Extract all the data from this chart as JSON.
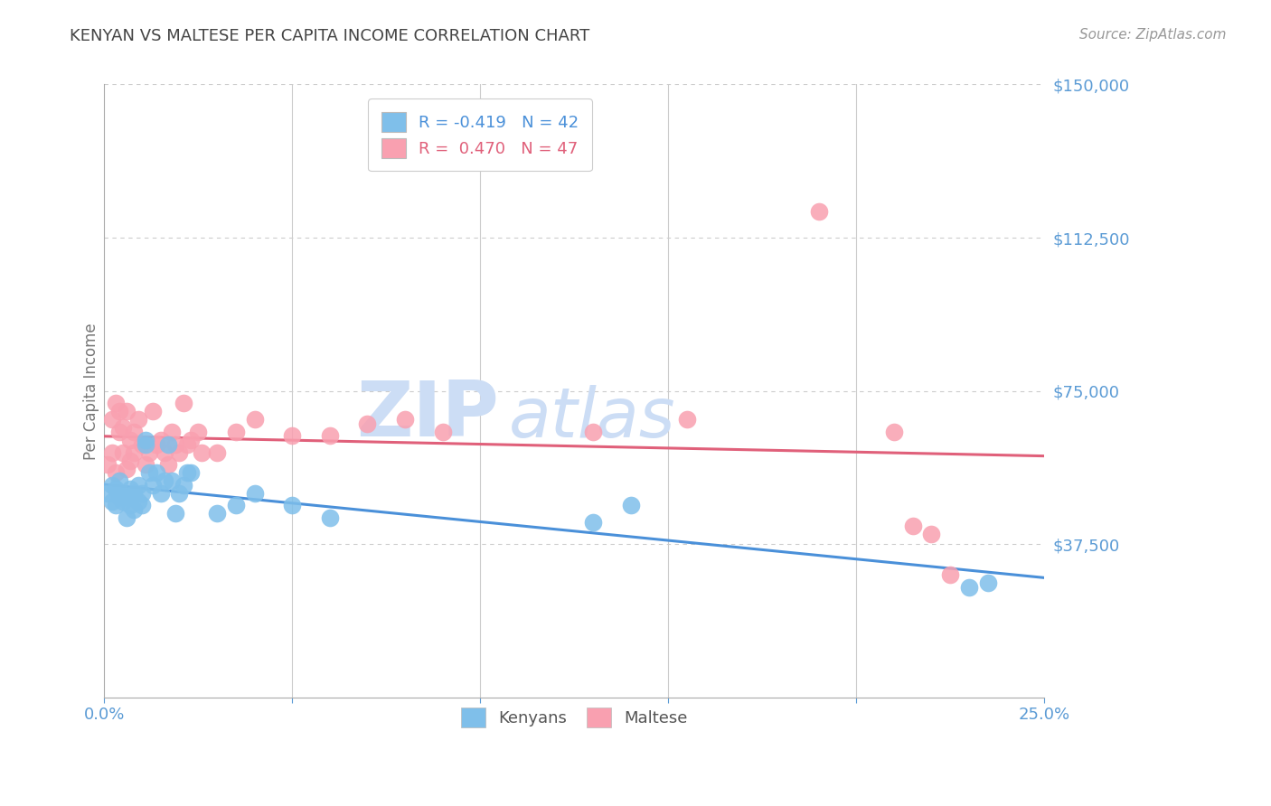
{
  "title": "KENYAN VS MALTESE PER CAPITA INCOME CORRELATION CHART",
  "source": "Source: ZipAtlas.com",
  "ylabel": "Per Capita Income",
  "xlim": [
    0.0,
    0.25
  ],
  "ylim": [
    0,
    150000
  ],
  "xticks": [
    0.0,
    0.05,
    0.1,
    0.15,
    0.2,
    0.25
  ],
  "xticklabels": [
    "0.0%",
    "",
    "",
    "",
    "",
    "25.0%"
  ],
  "yticks": [
    0,
    37500,
    75000,
    112500,
    150000
  ],
  "yticklabels": [
    "",
    "$37,500",
    "$75,000",
    "$112,500",
    "$150,000"
  ],
  "grid_color": "#cccccc",
  "background_color": "#ffffff",
  "kenyan_color": "#7fbfea",
  "maltese_color": "#f9a0b0",
  "kenyan_line_color": "#4a90d9",
  "maltese_line_color": "#e0607a",
  "title_color": "#444444",
  "axis_label_color": "#777777",
  "tick_label_color": "#5b9bd5",
  "source_color": "#999999",
  "legend_kenyan_label": "R = -0.419   N = 42",
  "legend_maltese_label": "R =  0.470   N = 47",
  "watermark_zip": "ZIP",
  "watermark_atlas": "atlas",
  "watermark_color": "#ccddf5",
  "kenyan_x": [
    0.001,
    0.002,
    0.002,
    0.003,
    0.003,
    0.004,
    0.004,
    0.005,
    0.005,
    0.006,
    0.006,
    0.007,
    0.007,
    0.008,
    0.008,
    0.009,
    0.009,
    0.01,
    0.01,
    0.011,
    0.011,
    0.012,
    0.013,
    0.014,
    0.015,
    0.016,
    0.017,
    0.018,
    0.019,
    0.02,
    0.021,
    0.022,
    0.023,
    0.03,
    0.035,
    0.04,
    0.05,
    0.06,
    0.13,
    0.14,
    0.23,
    0.235
  ],
  "kenyan_y": [
    50000,
    48000,
    52000,
    47000,
    51000,
    49000,
    53000,
    48000,
    50000,
    49000,
    44000,
    51000,
    47000,
    50000,
    46000,
    52000,
    48000,
    47000,
    50000,
    62000,
    63000,
    55000,
    52000,
    55000,
    50000,
    53000,
    62000,
    53000,
    45000,
    50000,
    52000,
    55000,
    55000,
    45000,
    47000,
    50000,
    47000,
    44000,
    43000,
    47000,
    27000,
    28000
  ],
  "maltese_x": [
    0.001,
    0.002,
    0.002,
    0.003,
    0.003,
    0.004,
    0.004,
    0.005,
    0.005,
    0.006,
    0.006,
    0.007,
    0.007,
    0.008,
    0.008,
    0.009,
    0.01,
    0.011,
    0.012,
    0.013,
    0.014,
    0.015,
    0.016,
    0.017,
    0.018,
    0.019,
    0.02,
    0.021,
    0.022,
    0.023,
    0.025,
    0.026,
    0.03,
    0.035,
    0.04,
    0.05,
    0.06,
    0.07,
    0.08,
    0.09,
    0.13,
    0.155,
    0.19,
    0.21,
    0.215,
    0.22,
    0.225
  ],
  "maltese_y": [
    57000,
    60000,
    68000,
    55000,
    72000,
    65000,
    70000,
    60000,
    66000,
    56000,
    70000,
    58000,
    63000,
    65000,
    60000,
    68000,
    62000,
    57000,
    60000,
    70000,
    62000,
    63000,
    60000,
    57000,
    65000,
    62000,
    60000,
    72000,
    62000,
    63000,
    65000,
    60000,
    60000,
    65000,
    68000,
    64000,
    64000,
    67000,
    68000,
    65000,
    65000,
    68000,
    119000,
    65000,
    42000,
    40000,
    30000
  ]
}
